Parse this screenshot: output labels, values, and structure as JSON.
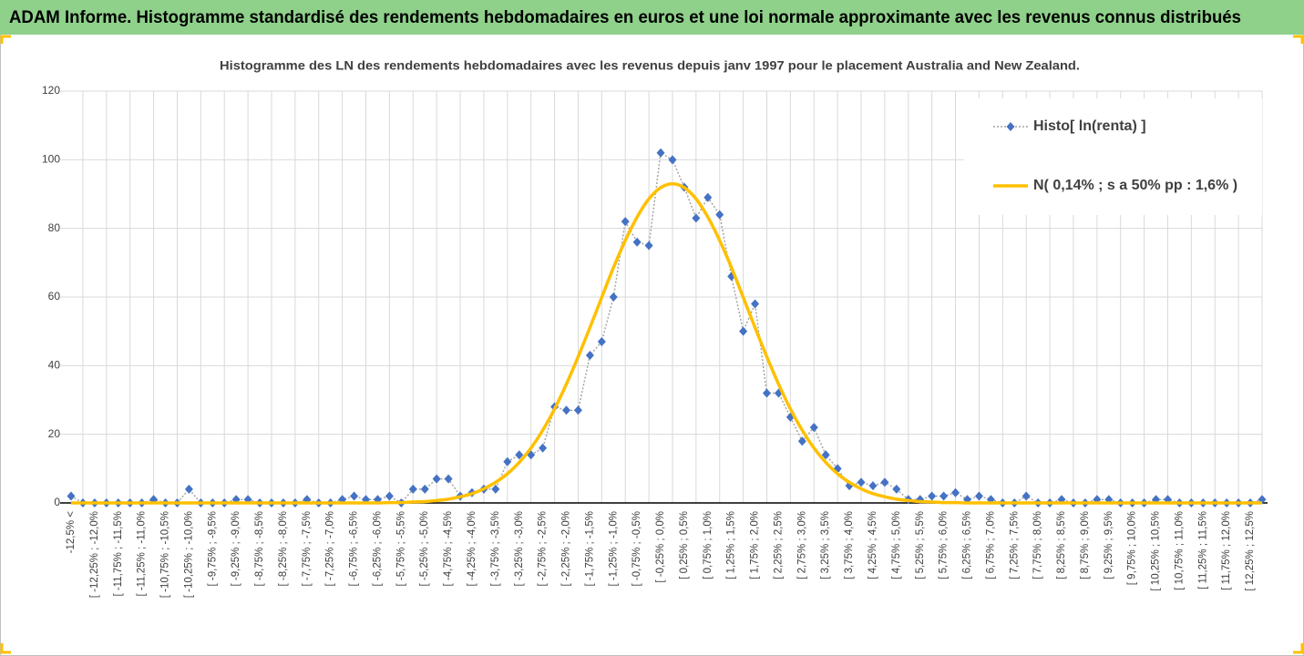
{
  "chart_data": {
    "type": "line",
    "title": "ADAM Informe. Histogramme standardisé des rendements hebdomadaires en euros et une loi normale approximante avec les revenus connus distribués",
    "subtitle": "Histogramme des LN des rendements hebdomadaires avec les revenus depuis janv 1997 pour le placement Australia and New Zealand.",
    "categories": [
      "-12,5% <",
      null,
      "[ -12,25% ; -12,0%",
      null,
      "[ -11,75% ; -11,5%",
      null,
      "[ -11,25% ; -11,0%",
      null,
      "[ -10,75% ; -10,5%",
      null,
      "[ -10,25% ; -10,0%",
      null,
      "[ -9,75% ; -9,5%",
      null,
      "[ -9,25% ; -9,0%",
      null,
      "[ -8,75% ; -8,5%",
      null,
      "[ -8,25% ; -8,0%",
      null,
      "[ -7,75% ; -7,5%",
      null,
      "[ -7,25% ; -7,0%",
      null,
      "[ -6,75% ; -6,5%",
      null,
      "[ -6,25% ; -6,0%",
      null,
      "[ -5,75% ; -5,5%",
      null,
      "[ -5,25% ; -5,0%",
      null,
      "[ -4,75% ; -4,5%",
      null,
      "[ -4,25% ; -4,0%",
      null,
      "[ -3,75% ; -3,5%",
      null,
      "[ -3,25% ; -3,0%",
      null,
      "[ -2,75% ; -2,5%",
      null,
      "[ -2,25% ; -2,0%",
      null,
      "[ -1,75% ; -1,5%",
      null,
      "[ -1,25% ; -1,0%",
      null,
      "[ -0,75% ; -0,5%",
      null,
      "[ -0,25% ; 0,0%",
      null,
      "[ 0,25% ; 0,5%",
      null,
      "[ 0,75% ; 1,0%",
      null,
      "[ 1,25% ; 1,5%",
      null,
      "[ 1,75% ; 2,0%",
      null,
      "[ 2,25% ; 2,5%",
      null,
      "[ 2,75% ; 3,0%",
      null,
      "[ 3,25% ; 3,5%",
      null,
      "[ 3,75% ; 4,0%",
      null,
      "[ 4,25% ; 4,5%",
      null,
      "[ 4,75% ; 5,0%",
      null,
      "[ 5,25% ; 5,5%",
      null,
      "[ 5,75% ; 6,0%",
      null,
      "[ 6,25% ; 6,5%",
      null,
      "[ 6,75% ; 7,0%",
      null,
      "[ 7,25% ; 7,5%",
      null,
      "[ 7,75% ; 8,0%",
      null,
      "[ 8,25% ; 8,5%",
      null,
      "[ 8,75% ; 9,0%",
      null,
      "[ 9,25% ; 9,5%",
      null,
      "[ 9,75% ; 10,0%",
      null,
      "[ 10,25% ; 10,5%",
      null,
      "[ 10,75% ; 11,0%",
      null,
      "[ 11,25% ; 11,5%",
      null,
      "[ 11,75% ; 12,0%",
      null,
      "[ 12,25% ; 12,5%",
      null
    ],
    "series": [
      {
        "name": "Histo[ ln(renta) ]",
        "color": "#4472c4",
        "line_color": "#a5a5a5",
        "marker": "diamond",
        "values": [
          2,
          0,
          0,
          0,
          0,
          0,
          0,
          1,
          0,
          0,
          4,
          0,
          0,
          0,
          1,
          1,
          0,
          0,
          0,
          0,
          1,
          0,
          0,
          1,
          2,
          1,
          1,
          2,
          0,
          4,
          4,
          7,
          7,
          2,
          3,
          4,
          4,
          12,
          14,
          14,
          16,
          28,
          27,
          27,
          43,
          47,
          60,
          82,
          76,
          75,
          102,
          100,
          92,
          83,
          89,
          84,
          66,
          50,
          58,
          32,
          32,
          25,
          18,
          22,
          14,
          10,
          5,
          6,
          5,
          6,
          4,
          1,
          1,
          2,
          2,
          3,
          1,
          2,
          1,
          0,
          0,
          2,
          0,
          0,
          1,
          0,
          0,
          1,
          1,
          0,
          0,
          0,
          1,
          1,
          0,
          0,
          0,
          0,
          0,
          0,
          0,
          1
        ]
      },
      {
        "name": "N( 0,14% ; s a 50% pp : 1,6% )",
        "color": "#ffc000",
        "smooth": true,
        "values": [
          0,
          0,
          0,
          0,
          0,
          0,
          0,
          0,
          0,
          0,
          0,
          0,
          0,
          0,
          0,
          0,
          0,
          0,
          0,
          0,
          0,
          0,
          0,
          0,
          0,
          0,
          0,
          0.1,
          0.1,
          0.3,
          0.4,
          0.7,
          1.1,
          1.8,
          2.7,
          4.1,
          6.0,
          8.5,
          11.8,
          16.0,
          21.2,
          27.4,
          34.6,
          42.6,
          51.1,
          59.9,
          68.6,
          76.5,
          83.3,
          88.6,
          91.9,
          93,
          91.9,
          88.6,
          83.3,
          76.5,
          68.6,
          59.9,
          51.1,
          42.6,
          34.6,
          27.4,
          21.2,
          16.0,
          11.8,
          8.5,
          6.0,
          4.1,
          2.7,
          1.8,
          1.1,
          0.7,
          0.4,
          0.3,
          0.1,
          0.1,
          0,
          0,
          0,
          0,
          0,
          0,
          0,
          0,
          0,
          0,
          0,
          0,
          0,
          0,
          0,
          0,
          0,
          0,
          0,
          0,
          0,
          0,
          0,
          0,
          0,
          0
        ]
      }
    ],
    "ylim": [
      0,
      120
    ],
    "yticks": [
      0,
      20,
      40,
      60,
      80,
      100,
      120
    ],
    "grid": true,
    "legend": "top-right"
  }
}
